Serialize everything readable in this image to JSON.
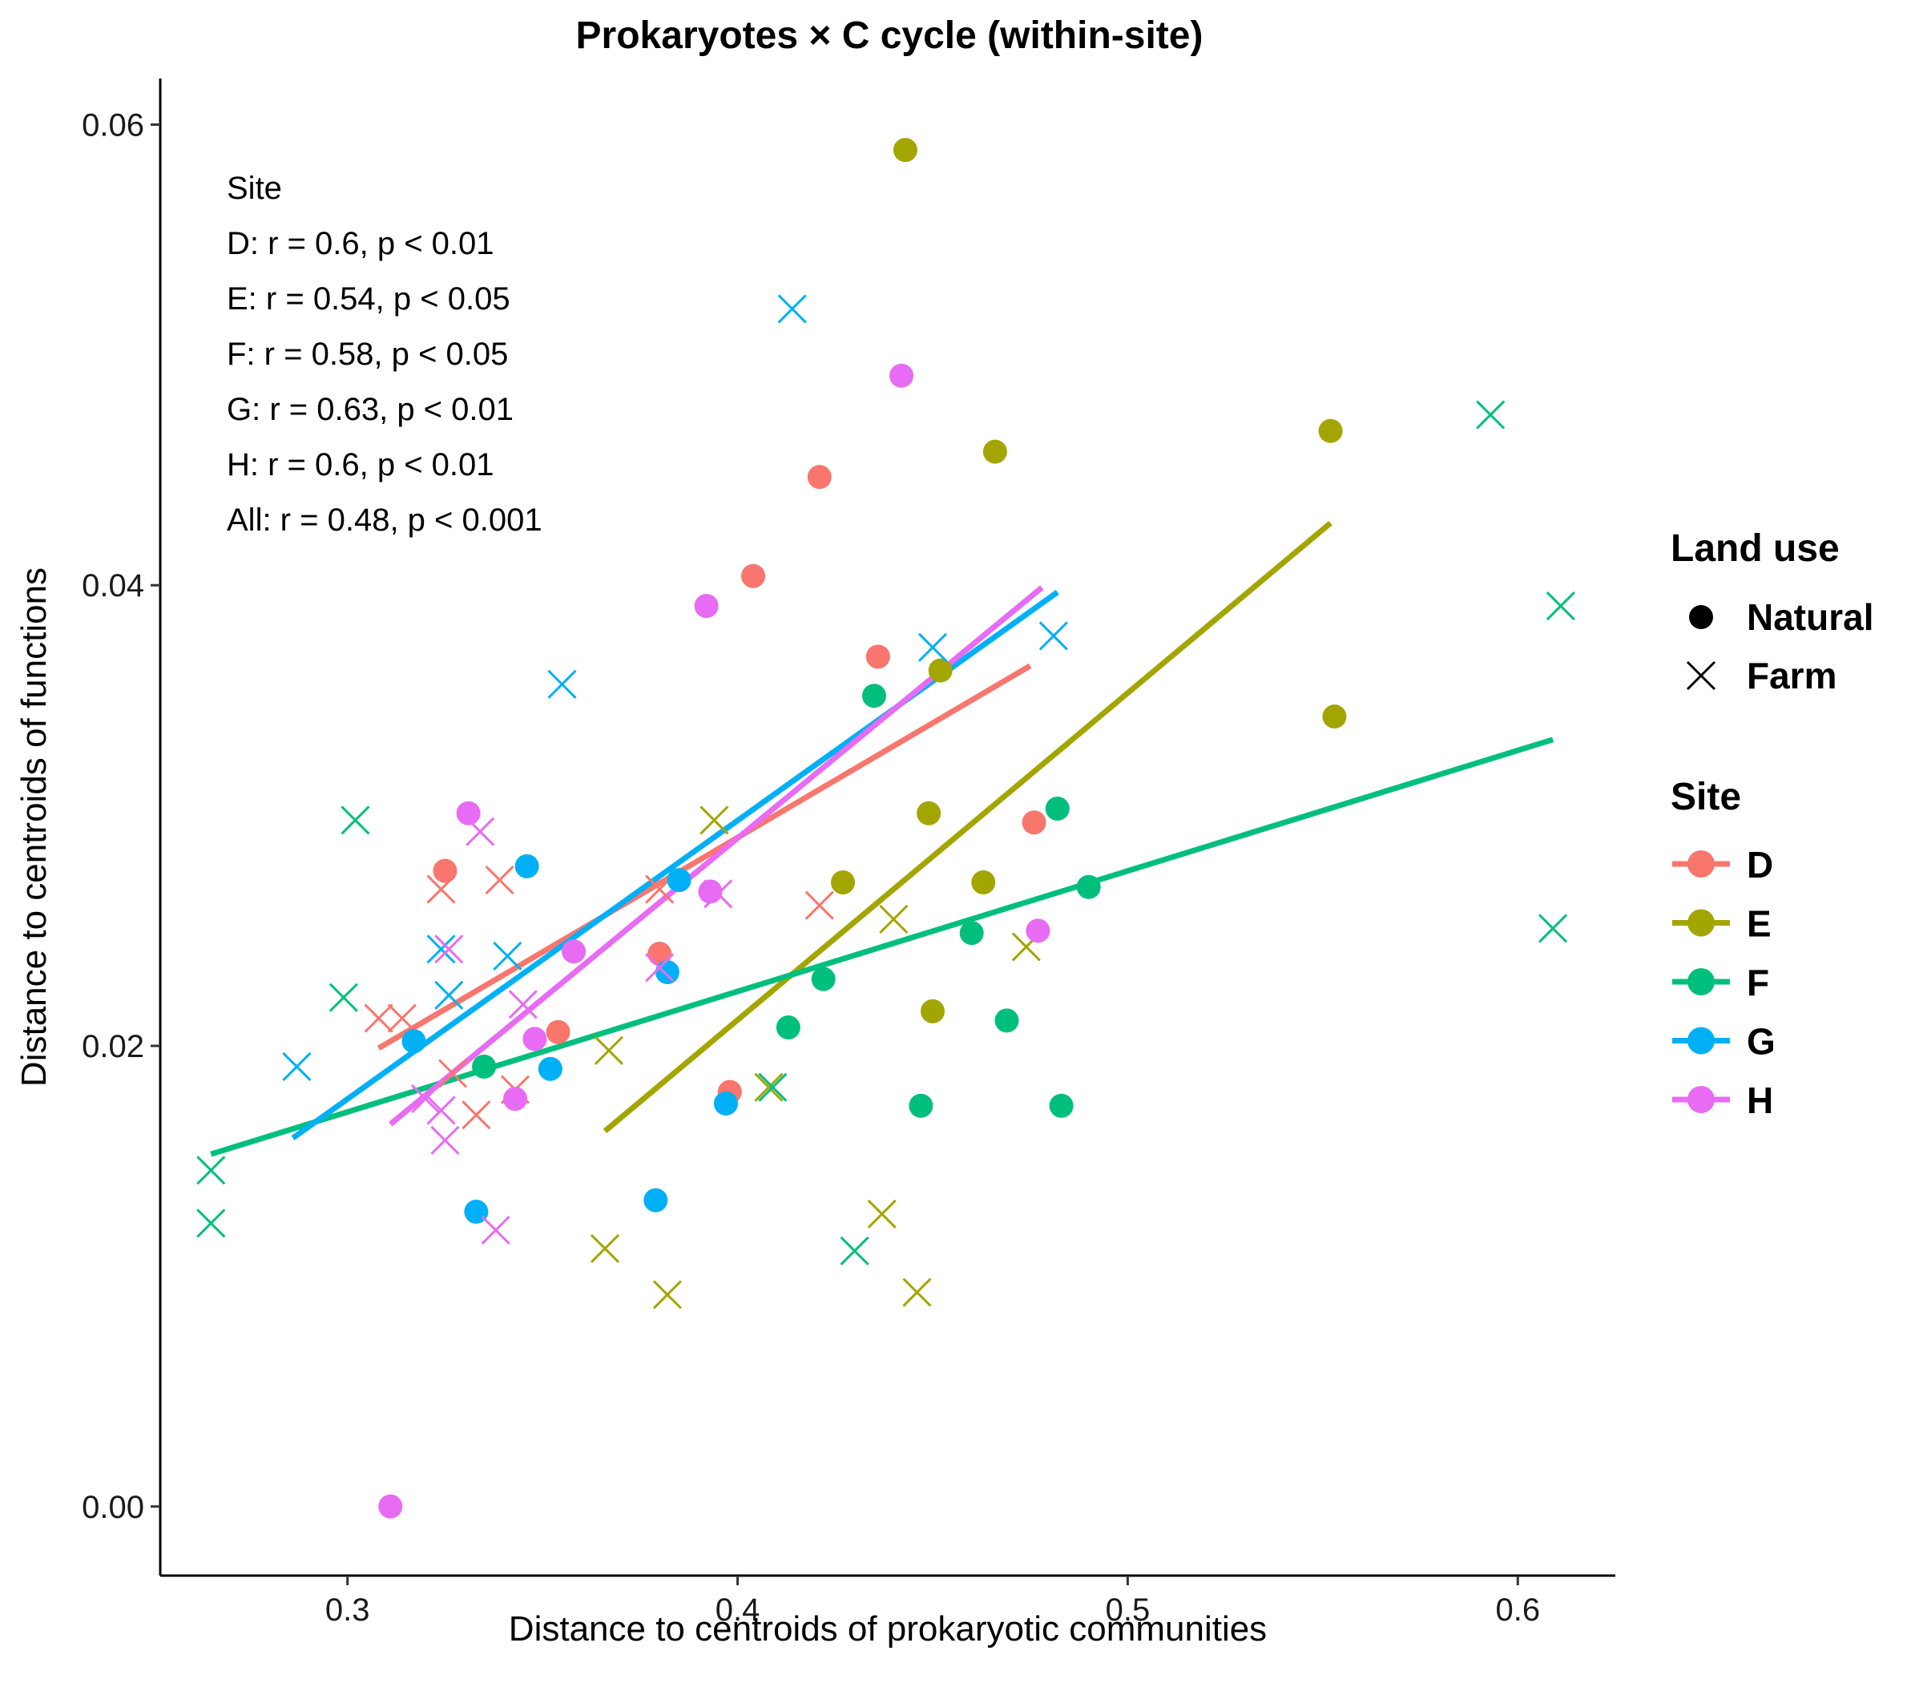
{
  "chart_data": {
    "type": "scatter",
    "title": "Prokaryotes × C cycle (within-site)",
    "xlabel": "Distance to centroids of prokaryotic communities",
    "ylabel": "Distance to centroids of functions",
    "xlim": [
      0.252,
      0.625
    ],
    "ylim": [
      -0.003,
      0.062
    ],
    "x_ticks": [
      0.3,
      0.4,
      0.5,
      0.6
    ],
    "x_tick_labels": [
      "0.3",
      "0.4",
      "0.5",
      "0.6"
    ],
    "y_ticks": [
      0.0,
      0.02,
      0.04,
      0.06
    ],
    "y_tick_labels": [
      "0.00",
      "0.02",
      "0.04",
      "0.06"
    ],
    "grid": false,
    "annotations": [
      "Site",
      "D: r = 0.6, p < 0.01",
      "E: r = 0.54, p < 0.05",
      "F: r = 0.58, p < 0.05",
      "G: r = 0.63, p < 0.01",
      "H: r = 0.6, p < 0.01",
      "All: r = 0.48, p < 0.001"
    ],
    "legend_placement": "right",
    "shape_legend": {
      "title": "Land use",
      "items": [
        {
          "label": "Natural",
          "shape": "circle"
        },
        {
          "label": "Farm",
          "shape": "cross"
        }
      ]
    },
    "color_legend": {
      "title": "Site",
      "items": [
        {
          "label": "D",
          "color": "#F8766D"
        },
        {
          "label": "E",
          "color": "#A3A500"
        },
        {
          "label": "F",
          "color": "#00BF7D"
        },
        {
          "label": "G",
          "color": "#00B0F6"
        },
        {
          "label": "H",
          "color": "#E76BF3"
        }
      ]
    },
    "series": [
      {
        "name": "D",
        "color": "#F8766D",
        "fit": [
          [
            0.308,
            0.0199
          ],
          [
            0.475,
            0.0365
          ]
        ],
        "natural": [
          [
            0.325,
            0.0276
          ],
          [
            0.354,
            0.0206
          ],
          [
            0.38,
            0.024
          ],
          [
            0.398,
            0.018
          ],
          [
            0.404,
            0.0404
          ],
          [
            0.421,
            0.0447
          ],
          [
            0.436,
            0.0369
          ],
          [
            0.476,
            0.0297
          ]
        ],
        "farm": [
          [
            0.308,
            0.0212
          ],
          [
            0.314,
            0.0212
          ],
          [
            0.324,
            0.0268
          ],
          [
            0.327,
            0.0188
          ],
          [
            0.333,
            0.017
          ],
          [
            0.339,
            0.0272
          ],
          [
            0.343,
            0.0181
          ],
          [
            0.38,
            0.0268
          ],
          [
            0.421,
            0.0261
          ]
        ]
      },
      {
        "name": "E",
        "color": "#A3A500",
        "fit": [
          [
            0.366,
            0.0163
          ],
          [
            0.552,
            0.0427
          ]
        ],
        "natural": [
          [
            0.427,
            0.0271
          ],
          [
            0.443,
            0.0589
          ],
          [
            0.449,
            0.0301
          ],
          [
            0.45,
            0.0215
          ],
          [
            0.452,
            0.0363
          ],
          [
            0.463,
            0.0271
          ],
          [
            0.466,
            0.0458
          ],
          [
            0.552,
            0.0467
          ],
          [
            0.553,
            0.0343
          ]
        ],
        "farm": [
          [
            0.366,
            0.0112
          ],
          [
            0.367,
            0.0198
          ],
          [
            0.382,
            0.0092
          ],
          [
            0.394,
            0.0298
          ],
          [
            0.408,
            0.0182
          ],
          [
            0.437,
            0.0127
          ],
          [
            0.44,
            0.0255
          ],
          [
            0.446,
            0.0093
          ],
          [
            0.474,
            0.0243
          ]
        ]
      },
      {
        "name": "F",
        "color": "#00BF7D",
        "fit": [
          [
            0.265,
            0.0153
          ],
          [
            0.609,
            0.0333
          ]
        ],
        "natural": [
          [
            0.335,
            0.0191
          ],
          [
            0.413,
            0.0208
          ],
          [
            0.422,
            0.0229
          ],
          [
            0.435,
            0.0352
          ],
          [
            0.447,
            0.0174
          ],
          [
            0.46,
            0.0249
          ],
          [
            0.469,
            0.0211
          ],
          [
            0.482,
            0.0303
          ],
          [
            0.483,
            0.0174
          ],
          [
            0.49,
            0.0269
          ]
        ],
        "farm": [
          [
            0.265,
            0.0146
          ],
          [
            0.265,
            0.0123
          ],
          [
            0.299,
            0.0221
          ],
          [
            0.302,
            0.0298
          ],
          [
            0.409,
            0.0182
          ],
          [
            0.43,
            0.0111
          ],
          [
            0.593,
            0.0474
          ],
          [
            0.609,
            0.0251
          ],
          [
            0.611,
            0.0391
          ]
        ]
      },
      {
        "name": "G",
        "color": "#00B0F6",
        "fit": [
          [
            0.286,
            0.016
          ],
          [
            0.482,
            0.0397
          ]
        ],
        "natural": [
          [
            0.317,
            0.0202
          ],
          [
            0.333,
            0.0128
          ],
          [
            0.346,
            0.0278
          ],
          [
            0.352,
            0.019
          ],
          [
            0.379,
            0.0133
          ],
          [
            0.382,
            0.0232
          ],
          [
            0.385,
            0.0272
          ],
          [
            0.397,
            0.0175
          ]
        ],
        "farm": [
          [
            0.287,
            0.0191
          ],
          [
            0.324,
            0.0242
          ],
          [
            0.326,
            0.0222
          ],
          [
            0.341,
            0.0239
          ],
          [
            0.355,
            0.0357
          ],
          [
            0.414,
            0.052
          ],
          [
            0.45,
            0.0373
          ],
          [
            0.481,
            0.0378
          ]
        ]
      },
      {
        "name": "H",
        "color": "#E76BF3",
        "fit": [
          [
            0.311,
            0.0166
          ],
          [
            0.478,
            0.0399
          ]
        ],
        "natural": [
          [
            0.311,
            0.0
          ],
          [
            0.331,
            0.0301
          ],
          [
            0.343,
            0.0177
          ],
          [
            0.348,
            0.0203
          ],
          [
            0.358,
            0.0241
          ],
          [
            0.392,
            0.0391
          ],
          [
            0.393,
            0.0267
          ],
          [
            0.442,
            0.0491
          ],
          [
            0.477,
            0.025
          ]
        ],
        "farm": [
          [
            0.32,
            0.0177
          ],
          [
            0.324,
            0.0172
          ],
          [
            0.325,
            0.0159
          ],
          [
            0.326,
            0.0242
          ],
          [
            0.334,
            0.0293
          ],
          [
            0.338,
            0.012
          ],
          [
            0.345,
            0.0218
          ],
          [
            0.38,
            0.0234
          ],
          [
            0.395,
            0.0266
          ]
        ]
      }
    ]
  }
}
